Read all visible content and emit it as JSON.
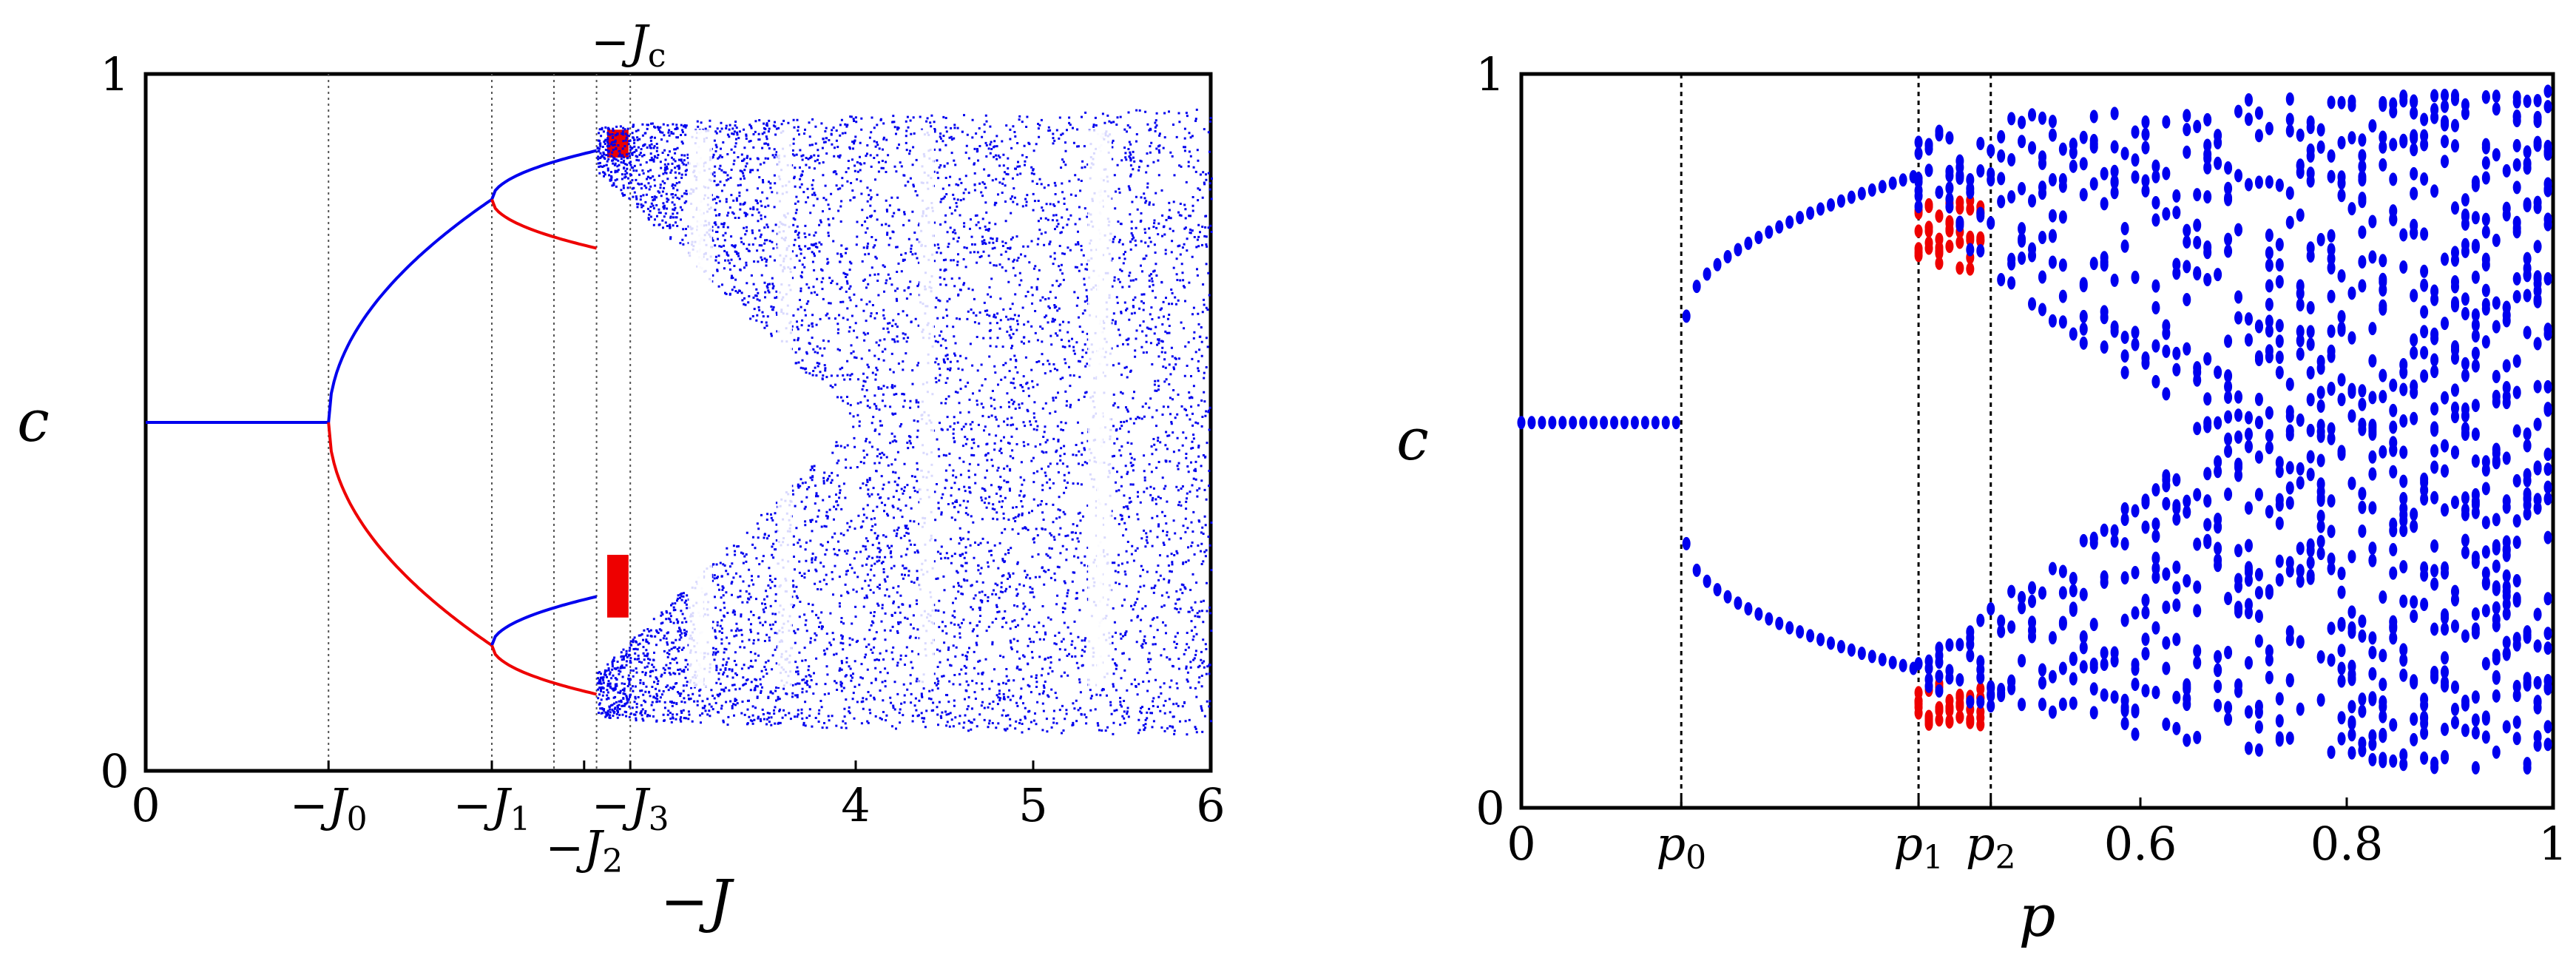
{
  "colors": {
    "primary": "#0000ee",
    "secondary": "#ee0000",
    "axis": "#000000",
    "guide": "#555555"
  },
  "chart_data": [
    {
      "type": "scatter",
      "title": "",
      "xlabel": "−J",
      "ylabel": "c",
      "xlim": [
        0,
        6
      ],
      "ylim": [
        0,
        1
      ],
      "xticks": [
        {
          "value": 0,
          "label": "0"
        },
        {
          "value": 1.03,
          "main": "−J",
          "sub": "0"
        },
        {
          "value": 1.95,
          "main": "−J",
          "sub": "1"
        },
        {
          "value": 2.47,
          "main": "−J",
          "sub": "2",
          "below": true
        },
        {
          "value": 2.73,
          "main": "−J",
          "sub": "3"
        },
        {
          "value": 4,
          "label": "4"
        },
        {
          "value": 5,
          "label": "5"
        },
        {
          "value": 6,
          "label": "6"
        }
      ],
      "yticks": [
        {
          "value": 0,
          "label": "0"
        },
        {
          "value": 1,
          "label": "1"
        }
      ],
      "top_annotation": {
        "value": 2.72,
        "main": "−J",
        "sub": "c"
      },
      "guide_lines": [
        1.03,
        1.95,
        2.3,
        2.54,
        2.73
      ],
      "period1": {
        "x_end": 1.03,
        "c": 0.5
      },
      "period2": {
        "x_start": 1.03,
        "x_end": 1.95,
        "c_end": [
          0.82,
          0.18
        ]
      },
      "period4_centers": [
        0.82,
        0.18
      ],
      "red_band": {
        "x_range": [
          2.6,
          2.72
        ],
        "upper": [
          0.88,
          0.92
        ],
        "lower": [
          0.22,
          0.31
        ]
      },
      "chaos": {
        "x_range": [
          2.54,
          6
        ],
        "envelope_max": [
          0.92,
          0.95
        ],
        "envelope_min": [
          0.08,
          0.05
        ]
      },
      "windows": [
        3.1,
        3.15,
        3.6,
        4.4,
        5.35,
        5.4
      ]
    },
    {
      "type": "scatter",
      "title": "",
      "xlabel": "p",
      "ylabel": "c",
      "xlim": [
        0,
        1
      ],
      "ylim": [
        0,
        1
      ],
      "xticks": [
        {
          "value": 0,
          "label": "0"
        },
        {
          "value": 0.155,
          "main": "p",
          "sub": "0"
        },
        {
          "value": 0.385,
          "main": "p",
          "sub": "1"
        },
        {
          "value": 0.455,
          "main": "p",
          "sub": "2"
        },
        {
          "value": 0.6,
          "label": "0.6"
        },
        {
          "value": 0.8,
          "label": "0.8"
        },
        {
          "value": 1,
          "label": "1"
        }
      ],
      "yticks": [
        {
          "value": 0,
          "label": "0"
        },
        {
          "value": 1,
          "label": "1"
        }
      ],
      "guide_lines": [
        0.155,
        0.385,
        0.455
      ],
      "p_step": 0.01,
      "period1": {
        "p_end": 0.15,
        "c": 0.525
      },
      "period2": {
        "p_range": [
          0.16,
          0.38
        ],
        "upper": [
          0.67,
          0.86
        ],
        "lower": [
          0.36,
          0.19
        ]
      },
      "red_band": {
        "p_range": [
          0.385,
          0.45
        ],
        "upper": [
          0.73,
          0.83
        ],
        "lower": [
          0.11,
          0.17
        ]
      },
      "chaos": {
        "p_range": [
          0.385,
          1
        ],
        "envelope_max": [
          0.93,
          0.98
        ],
        "envelope_min": [
          0.18,
          0.04
        ]
      }
    }
  ]
}
